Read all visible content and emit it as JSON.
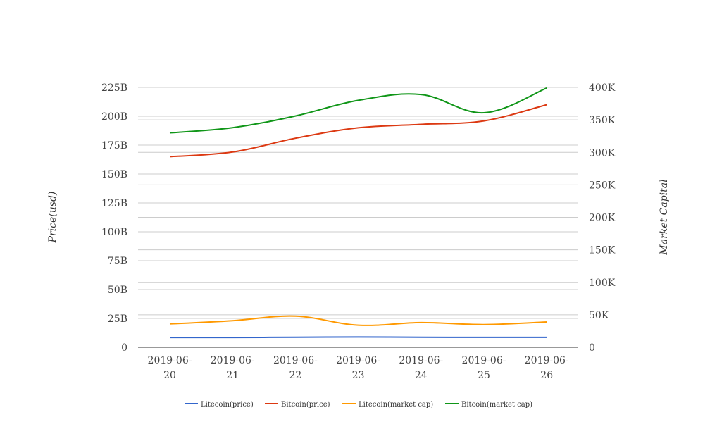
{
  "chart_data": {
    "type": "line",
    "categories": [
      "2019-06-20",
      "2019-06-21",
      "2019-06-22",
      "2019-06-23",
      "2019-06-24",
      "2019-06-25",
      "2019-06-26"
    ],
    "category_labels": [
      [
        "2019-06-",
        "20"
      ],
      [
        "2019-06-",
        "21"
      ],
      [
        "2019-06-",
        "22"
      ],
      [
        "2019-06-",
        "23"
      ],
      [
        "2019-06-",
        "24"
      ],
      [
        "2019-06-",
        "25"
      ],
      [
        "2019-06-",
        "26"
      ]
    ],
    "ylabel": "Price(usd)",
    "y2label": "Market Capital",
    "ylim": [
      0,
      225000000000
    ],
    "y2lim": [
      0,
      400000
    ],
    "y_ticks": [
      0,
      25000000000,
      50000000000,
      75000000000,
      100000000000,
      125000000000,
      150000000000,
      175000000000,
      200000000000,
      225000000000
    ],
    "y_tick_labels": [
      "0",
      "25B",
      "50B",
      "75B",
      "100B",
      "125B",
      "150B",
      "175B",
      "200B",
      "225B"
    ],
    "y2_ticks": [
      0,
      50000,
      100000,
      150000,
      200000,
      250000,
      300000,
      350000,
      400000
    ],
    "y2_tick_labels": [
      "0",
      "50K",
      "100K",
      "150K",
      "200K",
      "250K",
      "300K",
      "350K",
      "400K"
    ],
    "grid": true,
    "legend_position": "bottom",
    "series": [
      {
        "name": "Litecoin(price)",
        "axis": "left",
        "color": "#3366cc",
        "values": [
          8500000000,
          8500000000,
          8700000000,
          8900000000,
          8700000000,
          8600000000,
          8600000000
        ]
      },
      {
        "name": "Bitcoin(price)",
        "axis": "left",
        "color": "#dc3912",
        "values": [
          165000000000,
          169000000000,
          181000000000,
          190000000000,
          193000000000,
          196000000000,
          210000000000
        ]
      },
      {
        "name": "Litecoin(market cap)",
        "axis": "right",
        "color": "#ff9900",
        "values": [
          36000,
          41000,
          48000,
          34000,
          38000,
          35000,
          39000
        ]
      },
      {
        "name": "Bitcoin(market cap)",
        "axis": "right",
        "color": "#109618",
        "values": [
          330000,
          338000,
          356000,
          380000,
          389000,
          361000,
          399000
        ]
      }
    ]
  }
}
